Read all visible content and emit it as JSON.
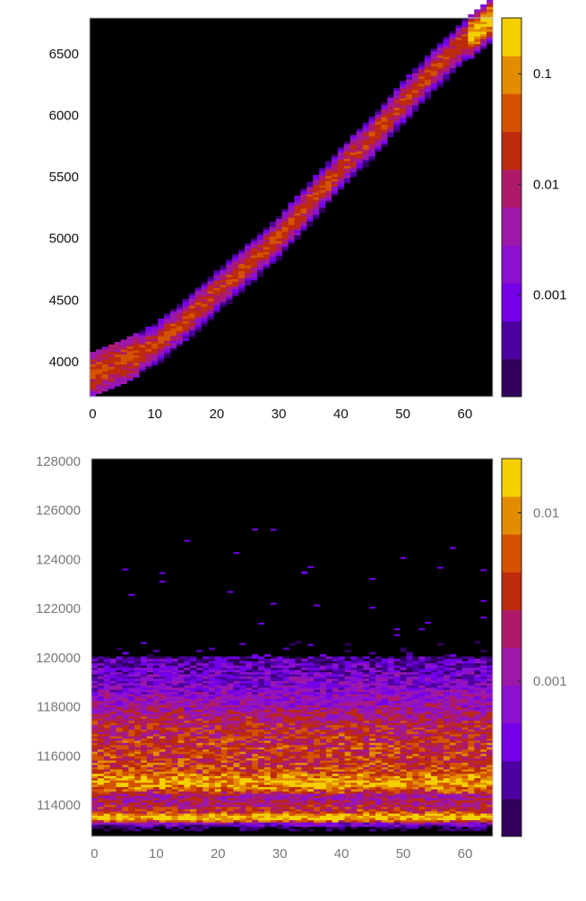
{
  "chart_data": [
    {
      "type": "heatmap",
      "title": "",
      "xlabel": "",
      "ylabel": "",
      "xlim": [
        -0.5,
        64.5
      ],
      "ylim": [
        3716,
        6790
      ],
      "x_ticks": [
        "0",
        "10",
        "20",
        "30",
        "40",
        "50",
        "60"
      ],
      "y_ticks": [
        "4000",
        "4500",
        "5000",
        "5500",
        "6000",
        "6500"
      ],
      "colorbar": {
        "scale": "log",
        "range": [
          0.00012,
          0.32
        ],
        "ticks": [
          "0.1",
          "0.01",
          "0.001"
        ]
      },
      "ridge_center": {
        "x": [
          0,
          5,
          10,
          15,
          20,
          25,
          30,
          35,
          40,
          45,
          50,
          55,
          60,
          64
        ],
        "y": [
          3900,
          4000,
          4130,
          4330,
          4560,
          4780,
          5000,
          5280,
          5560,
          5810,
          6100,
          6360,
          6600,
          6760
        ]
      },
      "grid": false
    },
    {
      "type": "heatmap",
      "title": "",
      "xlabel": "",
      "ylabel": "",
      "xlim": [
        -0.5,
        64.5
      ],
      "ylim": [
        112720,
        128110
      ],
      "x_ticks": [
        "0",
        "10",
        "20",
        "30",
        "40",
        "50",
        "60"
      ],
      "y_ticks": [
        "114000",
        "116000",
        "118000",
        "120000",
        "122000",
        "124000",
        "126000",
        "128000"
      ],
      "colorbar": {
        "scale": "log",
        "range": [
          0.00012,
          0.021
        ],
        "ticks": [
          "0.01",
          "0.001"
        ]
      },
      "y_profile": {
        "y": [
          112800,
          113100,
          113300,
          113500,
          113700,
          114000,
          114400,
          114800,
          115000,
          115300,
          115700,
          116500,
          117300,
          118000,
          118800,
          119500,
          120000,
          120300,
          121000
        ],
        "value": [
          0,
          0.00015,
          0.0008,
          0.02,
          0.004,
          0.002,
          0.0012,
          0.01,
          0.012,
          0.005,
          0.004,
          0.0035,
          0.0025,
          0.0012,
          0.0006,
          0.0004,
          0.00025,
          0.00012,
          0
        ]
      },
      "grid": false
    }
  ],
  "palette": [
    "#000000",
    "#30005a",
    "#4c00a0",
    "#7400e8",
    "#8c10d0",
    "#9c18a8",
    "#ae1a6a",
    "#bd2a0e",
    "#d45200",
    "#e48c00",
    "#f5d000"
  ]
}
